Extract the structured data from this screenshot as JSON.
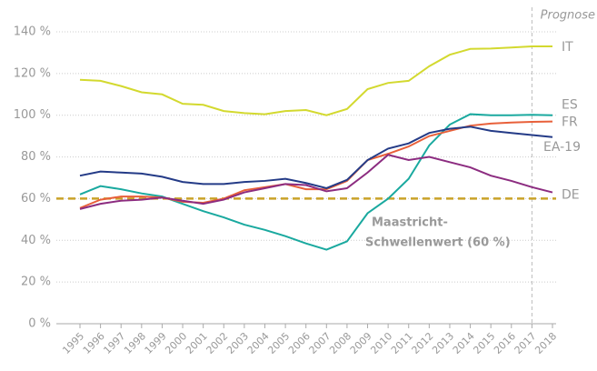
{
  "chart_data": {
    "type": "line",
    "categories": [
      "1995",
      "1996",
      "1997",
      "1998",
      "1999",
      "2000",
      "2001",
      "2002",
      "2003",
      "2004",
      "2005",
      "2006",
      "2007",
      "2008",
      "2009",
      "2010",
      "2011",
      "2012",
      "2013",
      "2014",
      "2015",
      "2016",
      "2017",
      "2018"
    ],
    "series": [
      {
        "name": "IT",
        "color": "#d3d92f",
        "values": [
          117,
          116.5,
          114,
          111,
          110,
          105.5,
          105,
          102,
          101,
          100.5,
          102,
          102.5,
          100,
          103,
          112.5,
          115.5,
          116.5,
          123.5,
          129,
          131.8,
          132,
          132.5,
          133,
          133
        ]
      },
      {
        "name": "ES",
        "color": "#1aa99f",
        "values": [
          62,
          66,
          64.5,
          62.5,
          61,
          57.5,
          54,
          51,
          47.5,
          45,
          42,
          38.5,
          35.5,
          39.5,
          53,
          60,
          69.5,
          85.5,
          95.5,
          100.5,
          100,
          100,
          100.2,
          100
        ]
      },
      {
        "name": "FR",
        "color": "#e8603a",
        "values": [
          55.5,
          59.5,
          61,
          61,
          60.5,
          58.5,
          58,
          60,
          64,
          65.5,
          67,
          64.5,
          64.5,
          68.5,
          78.5,
          81.5,
          85,
          90,
          92.5,
          95,
          96,
          96.5,
          96.8,
          97
        ]
      },
      {
        "name": "EA-19",
        "color": "#243b87",
        "values": [
          71,
          73,
          72.5,
          72,
          70.5,
          68,
          67,
          67,
          68,
          68.5,
          69.5,
          67.5,
          65,
          69,
          78.5,
          84,
          86.5,
          91.5,
          93.5,
          94.5,
          92.5,
          91.5,
          90.5,
          89.5
        ]
      },
      {
        "name": "DE",
        "color": "#8c2c80",
        "values": [
          55,
          57.5,
          59,
          59.5,
          60.5,
          59,
          57.5,
          59.5,
          63,
          65,
          67,
          66.5,
          63.5,
          65,
          72.5,
          81,
          78.5,
          80,
          77.5,
          75,
          71,
          68.5,
          65.5,
          63
        ]
      }
    ],
    "reference_line": {
      "value": 60,
      "color": "#c9a228",
      "label": [
        "Maastricht-",
        "Schwellenwert (60 %)"
      ]
    },
    "forecast": {
      "start": "2017",
      "label": "Prognose"
    },
    "ylim": [
      0,
      140
    ],
    "yticks": [
      {
        "value": 0,
        "label": "0 %"
      },
      {
        "value": 20,
        "label": "20 %"
      },
      {
        "value": 40,
        "label": "40 %"
      },
      {
        "value": 60,
        "label": "60 %"
      },
      {
        "value": 80,
        "label": "80 %"
      },
      {
        "value": 100,
        "label": "100 %"
      },
      {
        "value": 120,
        "label": "120 %"
      },
      {
        "value": 140,
        "label": "140 %"
      }
    ],
    "grid": true
  }
}
